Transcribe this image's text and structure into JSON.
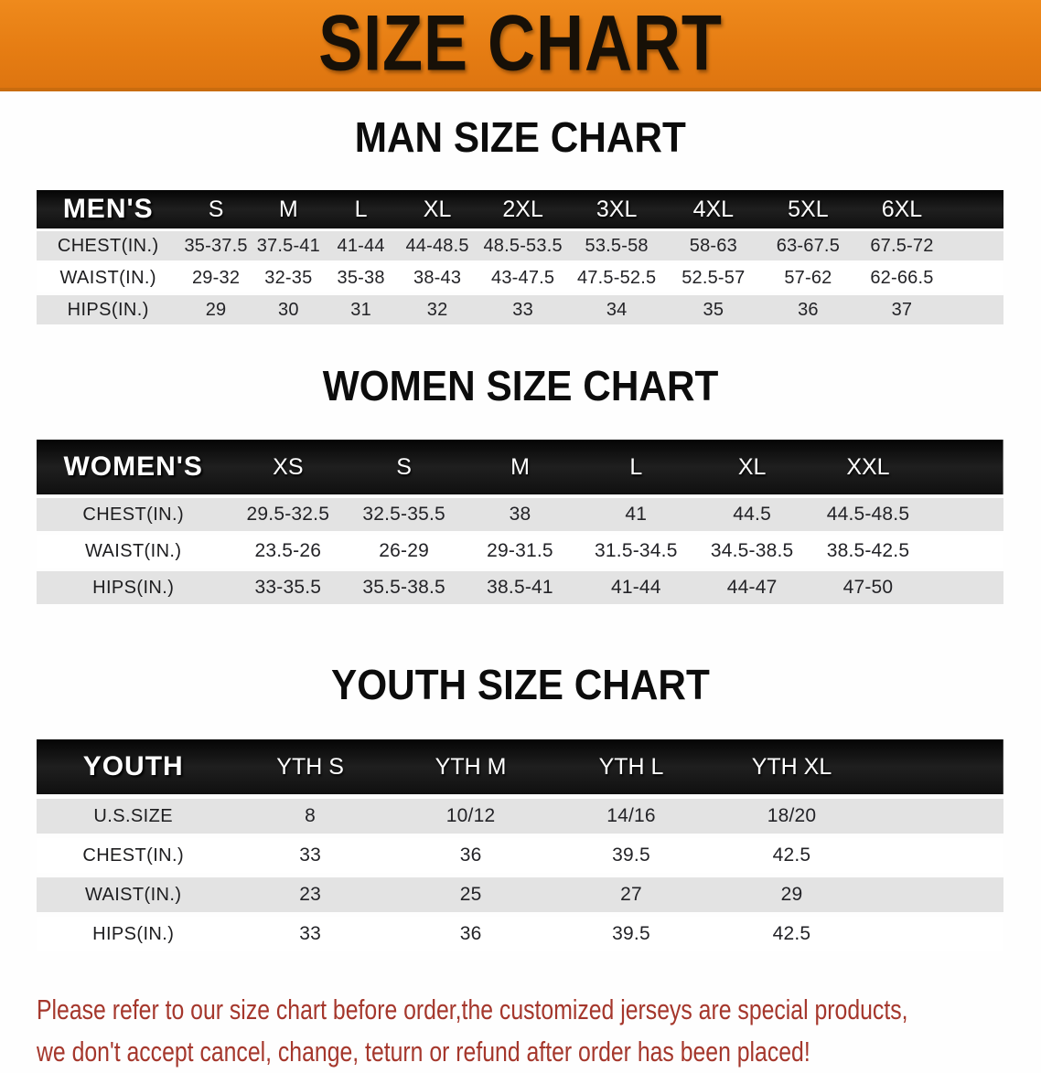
{
  "banner": {
    "title": "SIZE CHART",
    "bg_color": "#e67d13",
    "text_color": "#171007"
  },
  "chart_data": [
    {
      "type": "table",
      "title": "MAN SIZE CHART",
      "columns": [
        "MEN'S",
        "S",
        "M",
        "L",
        "XL",
        "2XL",
        "3XL",
        "4XL",
        "5XL",
        "6XL"
      ],
      "rows": [
        [
          "CHEST(IN.)",
          "35-37.5",
          "37.5-41",
          "41-44",
          "44-48.5",
          "48.5-53.5",
          "53.5-58",
          "58-63",
          "63-67.5",
          "67.5-72"
        ],
        [
          "WAIST(IN.)",
          "29-32",
          "32-35",
          "35-38",
          "38-43",
          "43-47.5",
          "47.5-52.5",
          "52.5-57",
          "57-62",
          "62-66.5"
        ],
        [
          "HIPS(IN.)",
          "29",
          "30",
          "31",
          "32",
          "33",
          "34",
          "35",
          "36",
          "37"
        ]
      ]
    },
    {
      "type": "table",
      "title": "WOMEN SIZE CHART",
      "columns": [
        "WOMEN'S",
        "XS",
        "S",
        "M",
        "L",
        "XL",
        "XXL"
      ],
      "rows": [
        [
          "CHEST(IN.)",
          "29.5-32.5",
          "32.5-35.5",
          "38",
          "41",
          "44.5",
          "44.5-48.5"
        ],
        [
          "WAIST(IN.)",
          "23.5-26",
          "26-29",
          "29-31.5",
          "31.5-34.5",
          "34.5-38.5",
          "38.5-42.5"
        ],
        [
          "HIPS(IN.)",
          "33-35.5",
          "35.5-38.5",
          "38.5-41",
          "41-44",
          "44-47",
          "47-50"
        ]
      ]
    },
    {
      "type": "table",
      "title": "YOUTH SIZE CHART",
      "columns": [
        "YOUTH",
        "YTH S",
        "YTH M",
        "YTH L",
        "YTH XL"
      ],
      "rows": [
        [
          "U.S.SIZE",
          "8",
          "10/12",
          "14/16",
          "18/20"
        ],
        [
          "CHEST(IN.)",
          "33",
          "36",
          "39.5",
          "42.5"
        ],
        [
          "WAIST(IN.)",
          "23",
          "25",
          "27",
          "29"
        ],
        [
          "HIPS(IN.)",
          "33",
          "36",
          "39.5",
          "42.5"
        ]
      ]
    }
  ],
  "footer_note": {
    "line1": "Please refer to our size chart before order,the customized jerseys are special products,",
    "line2": "we don't accept cancel, change, teturn or refund after order has been placed!",
    "text_color": "#a5372c"
  },
  "colors": {
    "banner_orange": "#e67d13",
    "banner_border": "#c96c0e",
    "table_header_bg": "#131313",
    "table_header_text": "#ffffff",
    "row_gray": "#e3e3e3",
    "row_white": "#ffffff",
    "body_text": "#232327",
    "note_red": "#a5372c"
  }
}
